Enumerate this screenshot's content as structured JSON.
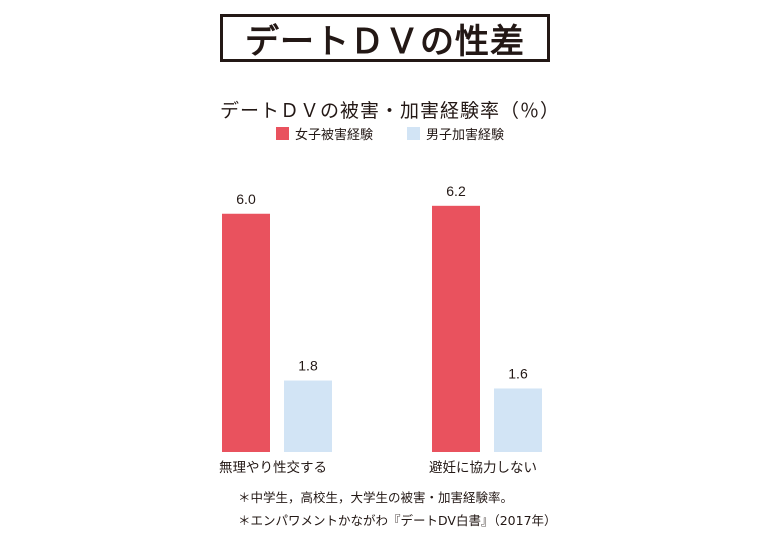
{
  "title": "デートＤＶの性差",
  "chart_data": {
    "type": "bar",
    "title": "デートＤＶの被害・加害経験率（％）",
    "categories": [
      "無理やり性交する",
      "避妊に協力しない"
    ],
    "series": [
      {
        "name": "女子被害経験",
        "values": [
          6.0,
          6.2
        ],
        "labels": [
          "6.0",
          "6.2"
        ],
        "color": "#e9525e"
      },
      {
        "name": "男子加害経験",
        "values": [
          1.8,
          1.6
        ],
        "labels": [
          "1.8",
          "1.6"
        ],
        "color": "#d2e4f5"
      }
    ],
    "ylim": [
      0,
      6.85
    ],
    "xlabel": "",
    "ylabel": "",
    "legend_position": "top-center",
    "grid": false
  },
  "notes": [
    "＊中学生，高校生，大学生の被害・加害経験率。",
    "＊エンパワメントかながわ『デートDV白書』（2017年）"
  ]
}
